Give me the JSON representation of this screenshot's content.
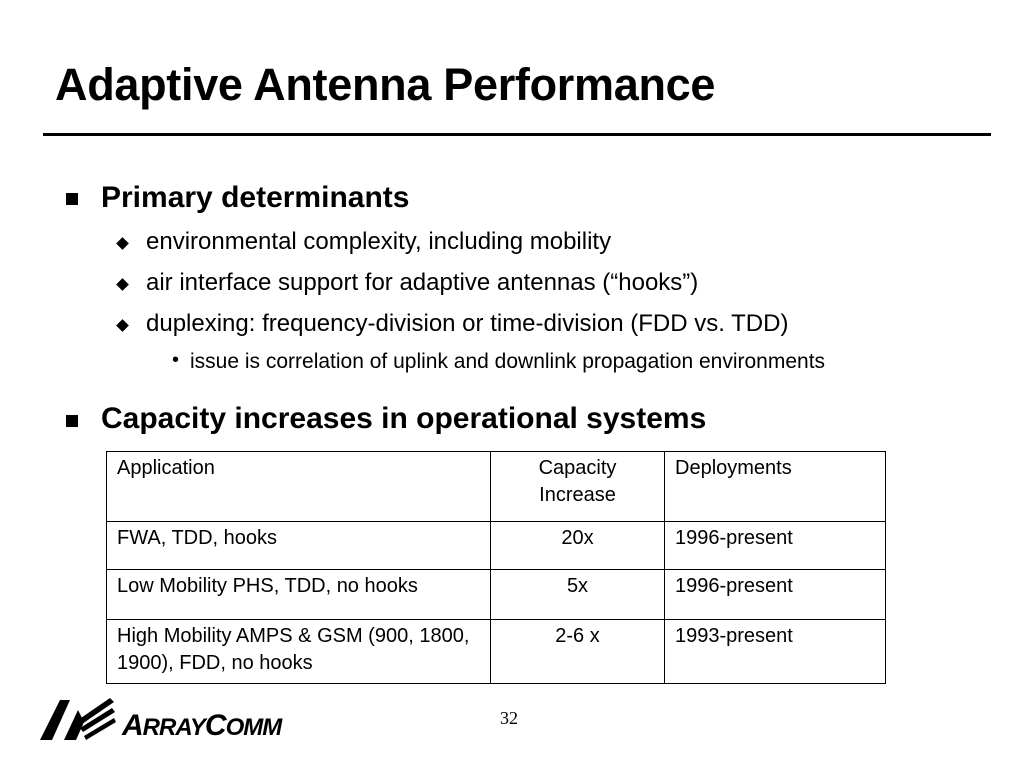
{
  "slide": {
    "title": "Adaptive Antenna Performance",
    "page_number": "32"
  },
  "bullets": [
    {
      "text": "Primary determinants",
      "items": [
        "environmental complexity, including mobility",
        "air interface support for adaptive antennas (“hooks”)",
        "duplexing: frequency-division or time-division (FDD vs. TDD)"
      ],
      "subitems": [
        "issue is correlation of uplink and downlink propagation environments"
      ]
    },
    {
      "text": "Capacity increases in operational systems"
    }
  ],
  "table": {
    "headers": [
      "Application",
      "Capacity Increase",
      "Deployments"
    ],
    "rows": [
      [
        "FWA, TDD, hooks",
        "20x",
        "1996-present"
      ],
      [
        "Low Mobility PHS, TDD, no hooks",
        "5x",
        "1996-present"
      ],
      [
        "High Mobility AMPS & GSM (900, 1800, 1900), FDD, no hooks",
        "2-6 x",
        "1993-present"
      ]
    ]
  },
  "logo": {
    "text_first_cap": "A",
    "text_first_rest": "RRAY",
    "text_second_cap": "C",
    "text_second_rest": "OMM",
    "icon": "arraycomm-logo-icon"
  },
  "colors": {
    "text": "#000000",
    "background": "#ffffff"
  }
}
